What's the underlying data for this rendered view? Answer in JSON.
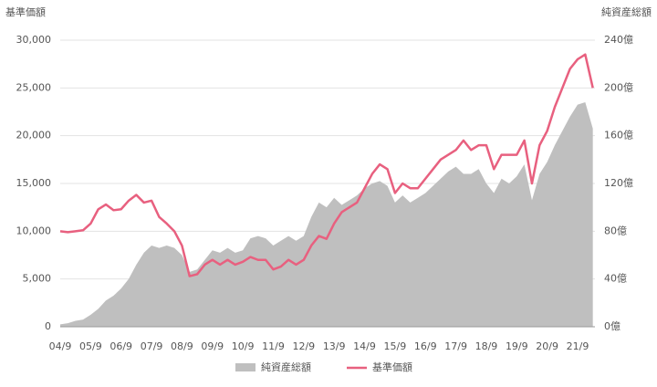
{
  "chart_data": {
    "type": "line-area",
    "y_label": "基準価額",
    "y2_label": "純資産総額",
    "categories": [
      "04/9",
      null,
      null,
      null,
      "05/9",
      null,
      null,
      null,
      "06/9",
      null,
      null,
      null,
      "07/9",
      null,
      null,
      null,
      "08/9",
      null,
      null,
      null,
      "09/9",
      null,
      null,
      null,
      "10/9",
      null,
      null,
      null,
      "11/9",
      null,
      null,
      null,
      "12/9",
      null,
      null,
      null,
      "13/9",
      null,
      null,
      null,
      "14/9",
      null,
      null,
      null,
      "15/9",
      null,
      null,
      null,
      "16/9",
      null,
      null,
      null,
      "17/9",
      null,
      null,
      null,
      "18/9",
      null,
      null,
      null,
      "19/9",
      null,
      null,
      null,
      "20/9",
      null,
      null,
      null,
      "21/9",
      null,
      null
    ],
    "series": [
      {
        "name": "純資産総額",
        "kind": "area",
        "axis": "y2",
        "color": "#bfbfbf",
        "values": [
          2,
          3,
          5,
          6,
          10,
          15,
          22,
          26,
          32,
          40,
          52,
          62,
          68,
          66,
          68,
          66,
          60,
          46,
          48,
          56,
          64,
          62,
          66,
          62,
          64,
          74,
          76,
          74,
          68,
          72,
          76,
          72,
          76,
          92,
          104,
          100,
          108,
          102,
          106,
          110,
          116,
          120,
          122,
          118,
          104,
          110,
          104,
          108,
          112,
          118,
          124,
          130,
          134,
          128,
          128,
          132,
          120,
          112,
          124,
          120,
          126,
          136,
          106,
          128,
          138,
          152,
          164,
          176,
          186,
          188,
          166
        ]
      },
      {
        "name": "基準価額",
        "kind": "line",
        "axis": "y",
        "color": "#e8607f",
        "values": [
          10000,
          9900,
          10000,
          10100,
          10800,
          12300,
          12800,
          12200,
          12300,
          13200,
          13800,
          13000,
          13200,
          11500,
          10800,
          10000,
          8500,
          5300,
          5500,
          6500,
          7000,
          6500,
          7000,
          6500,
          6800,
          7300,
          7000,
          7000,
          6000,
          6300,
          7000,
          6500,
          7000,
          8500,
          9500,
          9200,
          10800,
          12000,
          12500,
          13000,
          14500,
          16000,
          17000,
          16500,
          14000,
          15000,
          14500,
          14500,
          15500,
          16500,
          17500,
          18000,
          18500,
          19500,
          18500,
          19000,
          19000,
          16500,
          18000,
          18000,
          18000,
          19500,
          15000,
          19000,
          20500,
          23000,
          25000,
          27000,
          28000,
          28500,
          25000
        ]
      }
    ],
    "ylim": [
      0,
      30000
    ],
    "yticks": [
      0,
      {
        "value": 5000,
        "label": "5,000"
      },
      {
        "value": 10000,
        "label": "10,000"
      },
      {
        "value": 15000,
        "label": "15,000"
      },
      {
        "value": 20000,
        "label": "20,000"
      },
      {
        "value": 25000,
        "label": "25,000"
      },
      {
        "value": 30000,
        "label": "30,000"
      }
    ],
    "y2lim": [
      0,
      240
    ],
    "y2ticks": [
      {
        "value": 0,
        "label": "0億"
      },
      {
        "value": 40,
        "label": "40億"
      },
      {
        "value": 80,
        "label": "80億"
      },
      {
        "value": 120,
        "label": "120億"
      },
      {
        "value": 160,
        "label": "160億"
      },
      {
        "value": 200,
        "label": "200億"
      },
      {
        "value": 240,
        "label": "240億"
      }
    ],
    "grid": true,
    "legend": "bottom"
  }
}
